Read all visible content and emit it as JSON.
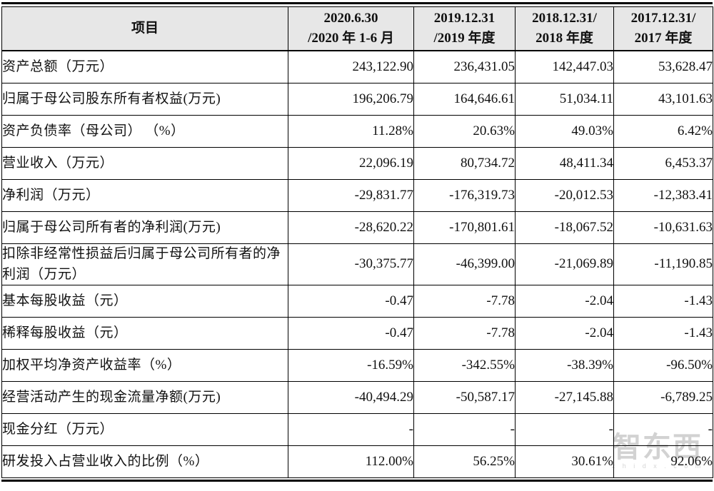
{
  "table": {
    "header": {
      "item_label": "项目",
      "periods": [
        {
          "line1": "2020.6.30",
          "line2": "/2020 年 1-6 月"
        },
        {
          "line1": "2019.12.31",
          "line2": "/2019 年度"
        },
        {
          "line1": "2018.12.31/",
          "line2": "2018 年度"
        },
        {
          "line1": "2017.12.31/",
          "line2": "2017 年度"
        }
      ]
    },
    "rows": [
      {
        "label": "资产总额（万元）",
        "values": [
          "243,122.90",
          "236,431.05",
          "142,447.03",
          "53,628.47"
        ]
      },
      {
        "label": "归属于母公司股东所有者权益(万元)",
        "values": [
          "196,206.79",
          "164,646.61",
          "51,034.11",
          "43,101.63"
        ]
      },
      {
        "label": "资产负债率（母公司） （%）",
        "values": [
          "11.28%",
          "20.63%",
          "49.03%",
          "6.42%"
        ]
      },
      {
        "label": "营业收入（万元）",
        "values": [
          "22,096.19",
          "80,734.72",
          "48,411.34",
          "6,453.37"
        ]
      },
      {
        "label": "净利润（万元）",
        "values": [
          "-29,831.77",
          "-176,319.73",
          "-20,012.53",
          "-12,383.41"
        ]
      },
      {
        "label": "归属于母公司所有者的净利润(万元)",
        "values": [
          "-28,620.22",
          "-170,801.61",
          "-18,067.52",
          "-10,631.63"
        ]
      },
      {
        "label": "扣除非经常性损益后归属于母公司所有者的净利润（万元）",
        "values": [
          "-30,375.77",
          "-46,399.00",
          "-21,069.89",
          "-11,190.85"
        ]
      },
      {
        "label": "基本每股收益（元）",
        "values": [
          "-0.47",
          "-7.78",
          "-2.04",
          "-1.43"
        ]
      },
      {
        "label": "稀释每股收益（元）",
        "values": [
          "-0.47",
          "-7.78",
          "-2.04",
          "-1.43"
        ]
      },
      {
        "label": "加权平均净资产收益率（%）",
        "values": [
          "-16.59%",
          "-342.55%",
          "-38.39%",
          "-96.50%"
        ]
      },
      {
        "label": "经营活动产生的现金流量净额(万元)",
        "values": [
          "-40,494.29",
          "-50,587.17",
          "-27,145.88",
          "-6,789.25"
        ]
      },
      {
        "label": "现金分红（万元）",
        "values": [
          "-",
          "-",
          "-",
          "-"
        ]
      },
      {
        "label": "研发投入占营业收入的比例（%）",
        "values": [
          "112.00%",
          "56.25%",
          "30.61%",
          "92.06%"
        ]
      }
    ]
  },
  "watermark": {
    "text": "智东西",
    "subtext": "z h i d x . c o m"
  },
  "colors": {
    "header_bg": "#e7e7e7",
    "border": "#000000",
    "text": "#111111",
    "watermark": "#d2d2d2"
  }
}
